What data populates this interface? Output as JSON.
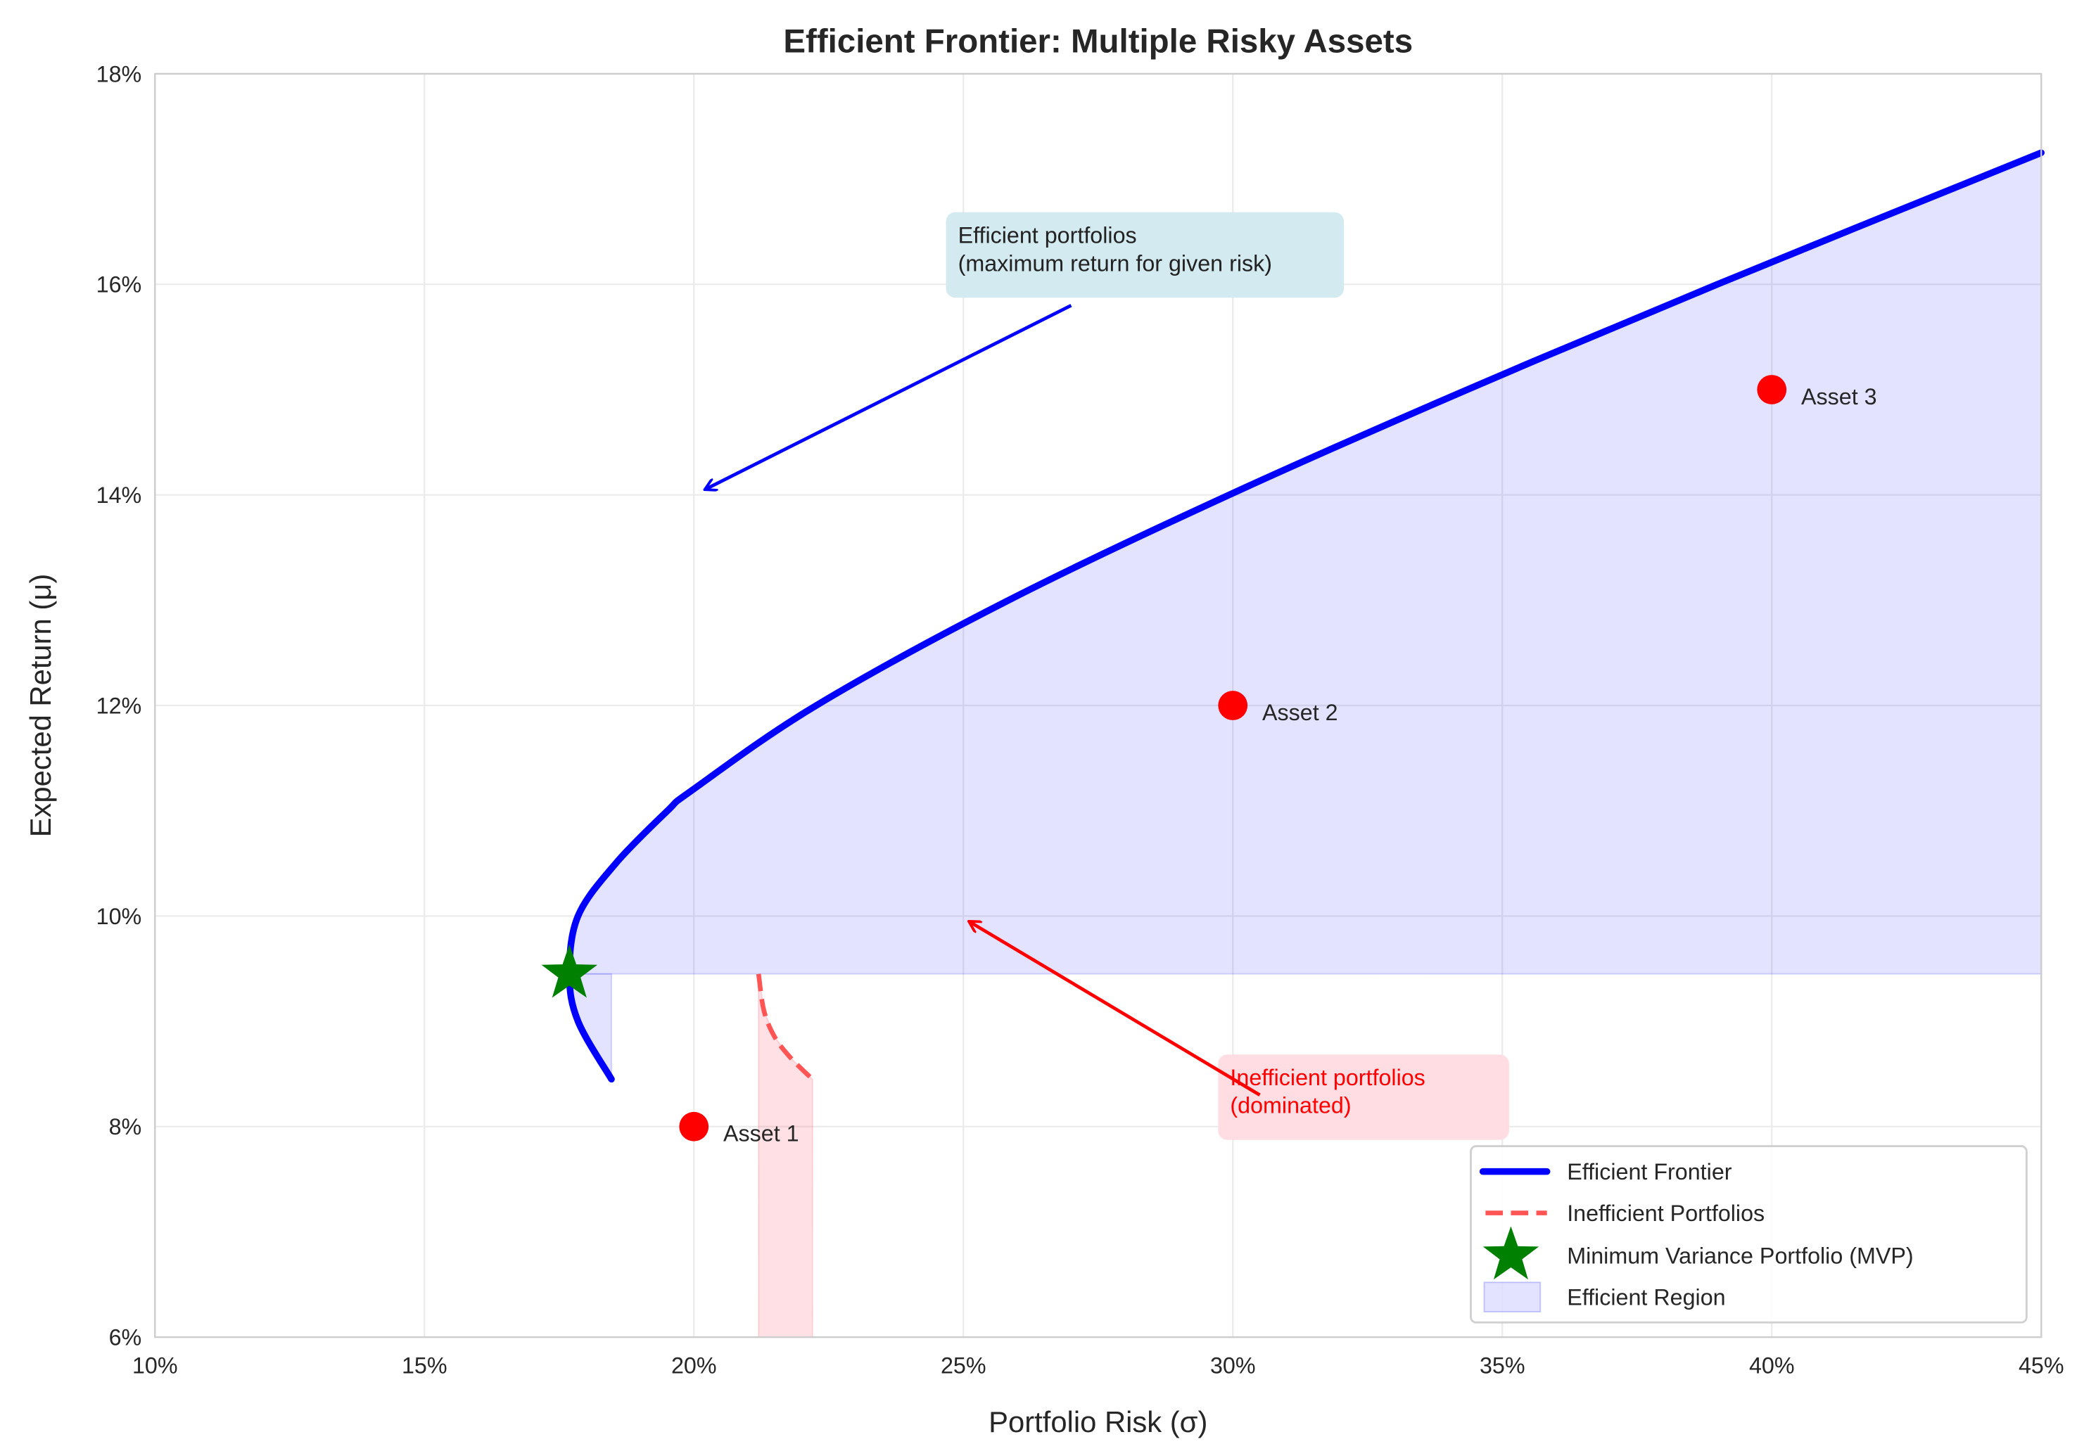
{
  "chart_data": {
    "type": "line",
    "title": "Efficient Frontier: Multiple Risky Assets",
    "xlabel": "Portfolio Risk (σ)",
    "ylabel": "Expected Return (μ)",
    "xlim": [
      10,
      45
    ],
    "ylim": [
      6,
      18
    ],
    "x_ticks": [
      10,
      15,
      20,
      25,
      30,
      35,
      40,
      45
    ],
    "y_ticks": [
      6,
      8,
      10,
      12,
      14,
      16,
      18
    ],
    "x_tick_labels": [
      "10%",
      "15%",
      "20%",
      "25%",
      "30%",
      "35%",
      "40%",
      "45%"
    ],
    "y_tick_labels": [
      "6%",
      "8%",
      "10%",
      "12%",
      "14%",
      "16%",
      "18%"
    ],
    "grid": true,
    "legend_position": "bottom-right",
    "series": [
      {
        "name": "Efficient Frontier",
        "color": "#0000ff",
        "style": "solid",
        "points": [
          [
            18.47,
            8.45
          ],
          [
            17.85,
            9.0
          ],
          [
            17.69,
            9.45
          ],
          [
            17.85,
            10.0
          ],
          [
            18.55,
            10.5
          ],
          [
            19.51,
            11.0
          ],
          [
            19.98,
            11.2
          ],
          [
            22.27,
            12.0
          ],
          [
            25.84,
            13.0
          ],
          [
            29.93,
            14.0
          ],
          [
            34.35,
            15.0
          ],
          [
            38.99,
            16.0
          ],
          [
            45.0,
            17.25
          ]
        ]
      },
      {
        "name": "Inefficient Portfolios",
        "color": "#ff5555",
        "style": "dashed",
        "points": [
          [
            21.2,
            9.45
          ],
          [
            21.3,
            9.1
          ],
          [
            21.5,
            8.85
          ],
          [
            21.8,
            8.65
          ],
          [
            22.2,
            8.45
          ]
        ]
      },
      {
        "name": "Minimum Variance Portfolio (MVP)",
        "color": "#008000",
        "marker": "star",
        "points": [
          [
            17.69,
            9.45
          ]
        ]
      },
      {
        "name": "Efficient Region",
        "color": "#0000ff",
        "style": "fill",
        "opacity": 0.1
      }
    ],
    "assets": [
      {
        "label": "Asset 1",
        "x": 20,
        "y": 8,
        "color": "#ff0000"
      },
      {
        "label": "Asset 2",
        "x": 30,
        "y": 12,
        "color": "#ff0000"
      },
      {
        "label": "Asset 3",
        "x": 40,
        "y": 15,
        "color": "#ff0000"
      }
    ],
    "annotations": [
      {
        "lines": [
          "Efficient portfolios",
          "(maximum return for given risk)"
        ],
        "text_color": "#222222",
        "box_color": "#d3eaf0",
        "arrow_color": "#0000ff",
        "arrow_from": [
          27.0,
          15.8
        ],
        "arrow_to": [
          20.2,
          14.05
        ],
        "text_at": [
          24.9,
          16.0
        ]
      },
      {
        "lines": [
          "Inefficient portfolios",
          "(dominated)"
        ],
        "text_color": "#ff0000",
        "box_color": "#ffdde2",
        "arrow_color": "#ff0000",
        "arrow_from": [
          30.5,
          8.3
        ],
        "arrow_to": [
          25.1,
          9.95
        ],
        "text_at": [
          29.95,
          8.0
        ]
      }
    ]
  }
}
